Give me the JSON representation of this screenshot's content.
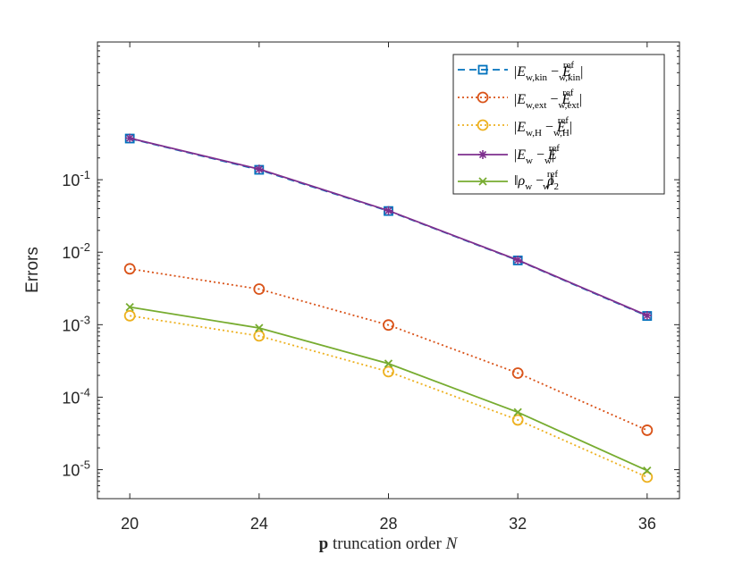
{
  "chart_data": {
    "type": "line",
    "title": "",
    "xlabel": "p truncation order N",
    "xlabel_parts": {
      "bold": "p",
      "middle": " truncation order ",
      "italic": "N"
    },
    "ylabel": "Errors",
    "yscale": "log",
    "x": [
      20,
      24,
      28,
      32,
      36
    ],
    "xlim": [
      19,
      37
    ],
    "ylim_exp": [
      -5.4,
      0.9
    ],
    "xticks": [
      "20",
      "24",
      "28",
      "32",
      "36"
    ],
    "yticks": [
      {
        "exp": -5,
        "base": "10",
        "power": "-5"
      },
      {
        "exp": -4,
        "base": "10",
        "power": "-4"
      },
      {
        "exp": -3,
        "base": "10",
        "power": "-3"
      },
      {
        "exp": -2,
        "base": "10",
        "power": "-2"
      },
      {
        "exp": -1,
        "base": "10",
        "power": "-1"
      }
    ],
    "grid": false,
    "legend_position": "top-right",
    "series": [
      {
        "name": "|E_w,kin − E_w,kin^ref|",
        "color": "#0072BD",
        "dash": "dashed",
        "marker": "square",
        "values": [
          0.37,
          0.137,
          0.037,
          0.0077,
          0.00132
        ]
      },
      {
        "name": "|E_w,ext − E_w,ext^ref|",
        "color": "#D95319",
        "dash": "dotted",
        "marker": "circle",
        "values": [
          0.0059,
          0.0031,
          0.00099,
          0.000215,
          3.5e-05
        ]
      },
      {
        "name": "|E_w,H − E_w,H^ref|",
        "color": "#EDB120",
        "dash": "dotted",
        "marker": "circle",
        "values": [
          0.00133,
          0.0007,
          0.000225,
          4.85e-05,
          7.9e-06
        ]
      },
      {
        "name": "|E_w − E_w^ref|",
        "color": "#7E2F8E",
        "dash": "solid",
        "marker": "star",
        "values": [
          0.375,
          0.14,
          0.0375,
          0.0078,
          0.00134
        ]
      },
      {
        "name": "‖ρ_w − ρ_w^ref‖_2",
        "color": "#77AC30",
        "dash": "solid",
        "marker": "x",
        "values": [
          0.00175,
          0.0009,
          0.00029,
          6.2e-05,
          9.7e-06
        ]
      }
    ]
  }
}
